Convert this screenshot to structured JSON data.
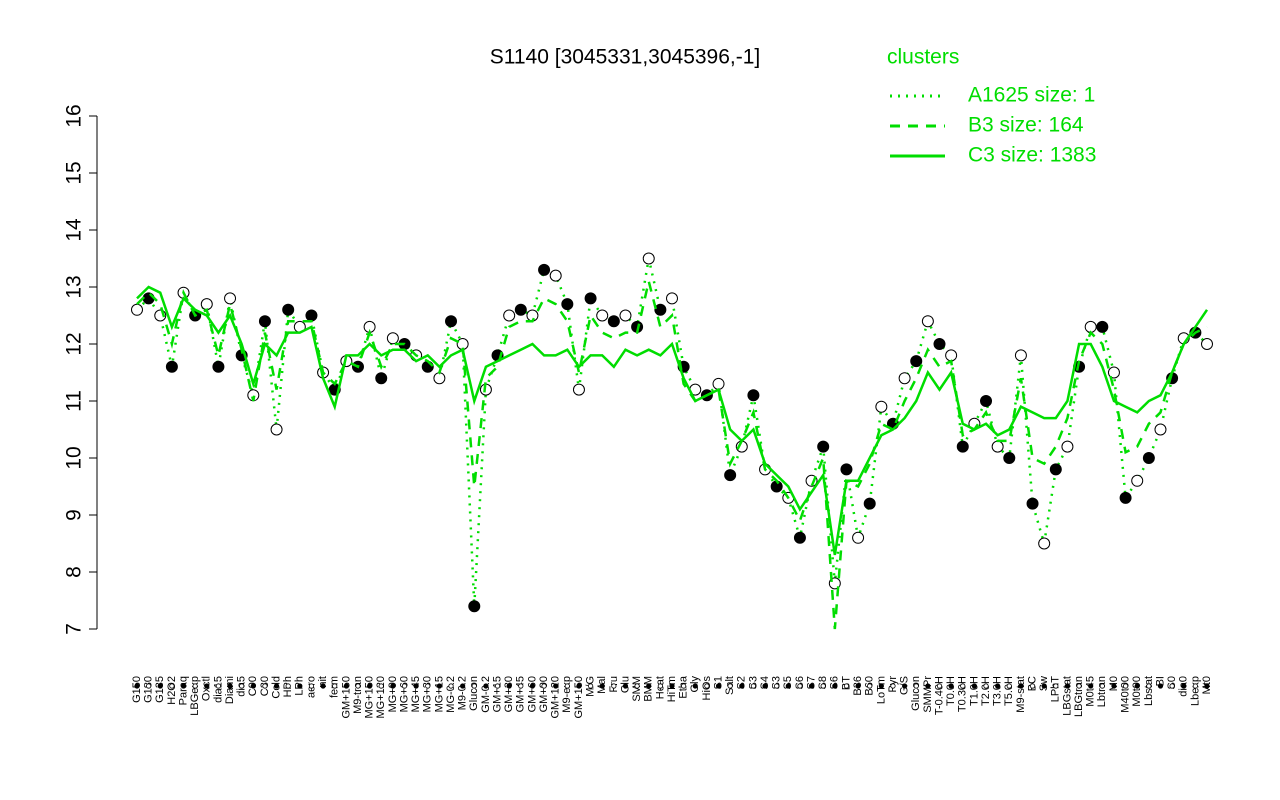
{
  "chart_data": {
    "type": "line",
    "title": "S1140 [3045331,3045396,-1]",
    "legend_title": "clusters",
    "categories": [
      "G150",
      "G180",
      "G135",
      "H2O2",
      "Paraq",
      "LBGexp",
      "Oxctl",
      "dia15",
      "Diami",
      "dia5",
      "C90",
      "C30",
      "Cold",
      "HPh",
      "LPh",
      "aero",
      "nit",
      "ferm",
      "GM+150",
      "M9-tran",
      "MG+150",
      "MG+120",
      "MG+90",
      "MG+60",
      "MG+45",
      "MG+30",
      "MG+15",
      "MG-0.2",
      "M9-0.2",
      "Glucon",
      "GM-0.2",
      "GM+15",
      "GM+30",
      "GM+45",
      "GM+60",
      "GM+90",
      "GM+120",
      "M9-exp",
      "GM+150",
      "M/G",
      "Mal",
      "Fru",
      "Glu",
      "SMM",
      "BMM",
      "Heat",
      "HiTm",
      "Etha",
      "Gly",
      "HiOs",
      "S1",
      "Salt",
      "S2",
      "S3",
      "S4",
      "S3",
      "S5",
      "S6",
      "S7",
      "S8",
      "S6",
      "BT",
      "B36",
      "B60",
      "LoTm",
      "Pyr",
      "G/S",
      "Glucon",
      "SMMPr",
      "T-0.40H",
      "T0.0H",
      "T0.30H",
      "T1.0H",
      "T2.0H",
      "T3.0H",
      "T5.0H",
      "M9-stat",
      "BC",
      "Sw",
      "LPhT",
      "LBGstat",
      "LBGtran",
      "M0t45",
      "Lbtran",
      "M0",
      "M40t90",
      "M0t90",
      "Lbstat",
      "BI",
      "S0",
      "dia0",
      "Lbexp",
      "Mt0"
    ],
    "series": [
      {
        "name": "A1625 size: 1",
        "color": "#00dd00",
        "dash": "dotted",
        "markers": true,
        "values": [
          12.6,
          12.8,
          12.5,
          11.6,
          12.9,
          12.5,
          12.7,
          11.6,
          12.8,
          11.8,
          11.1,
          12.4,
          10.5,
          12.6,
          12.3,
          12.5,
          11.5,
          11.2,
          11.7,
          11.6,
          12.3,
          11.4,
          12.1,
          12.0,
          11.8,
          11.6,
          11.4,
          12.4,
          12.0,
          7.4,
          11.2,
          11.8,
          12.5,
          12.6,
          12.5,
          13.3,
          13.2,
          12.7,
          11.2,
          12.8,
          12.5,
          12.4,
          12.5,
          12.3,
          13.5,
          12.6,
          12.8,
          11.6,
          11.2,
          11.1,
          11.3,
          9.7,
          10.2,
          11.1,
          9.8,
          9.5,
          9.3,
          8.6,
          9.6,
          10.2,
          7.8,
          9.8,
          8.6,
          9.2,
          10.9,
          10.6,
          11.4,
          11.7,
          12.4,
          12.0,
          11.8,
          10.2,
          10.6,
          11.0,
          10.2,
          10.0,
          11.8,
          9.2,
          8.5,
          9.8,
          10.2,
          11.6,
          12.3,
          12.3,
          11.5,
          9.3,
          9.6,
          10.0,
          10.5,
          11.4,
          12.1,
          12.2,
          12.0
        ]
      },
      {
        "name": "B3 size: 164",
        "color": "#00dd00",
        "dash": "dashed",
        "markers": false,
        "values": [
          12.7,
          12.9,
          12.7,
          12.0,
          12.9,
          12.5,
          12.6,
          11.8,
          12.7,
          11.9,
          11.0,
          12.2,
          11.2,
          12.4,
          12.4,
          12.4,
          11.5,
          11.3,
          11.7,
          11.6,
          12.2,
          11.6,
          12.0,
          12.0,
          11.8,
          11.7,
          11.5,
          12.1,
          12.0,
          9.5,
          11.4,
          11.6,
          12.3,
          12.4,
          12.4,
          12.8,
          12.7,
          12.4,
          11.5,
          12.5,
          12.2,
          12.1,
          12.2,
          12.2,
          13.1,
          12.3,
          12.5,
          11.3,
          11.0,
          11.1,
          11.2,
          9.9,
          10.3,
          10.8,
          9.8,
          9.6,
          9.3,
          8.9,
          9.5,
          10.0,
          7.0,
          9.6,
          9.5,
          9.9,
          10.6,
          10.5,
          11.0,
          11.4,
          11.9,
          11.6,
          11.7,
          10.4,
          10.5,
          10.8,
          10.3,
          10.3,
          11.4,
          10.0,
          9.9,
          10.2,
          10.7,
          11.7,
          12.2,
          12.0,
          11.2,
          10.1,
          10.2,
          10.6,
          10.8,
          11.5,
          12.0,
          12.2,
          12.3
        ]
      },
      {
        "name": "C3 size: 1383",
        "color": "#00dd00",
        "dash": "solid",
        "markers": false,
        "values": [
          12.8,
          13.0,
          12.9,
          12.3,
          12.8,
          12.6,
          12.5,
          12.2,
          12.5,
          12.0,
          11.3,
          12.0,
          11.8,
          12.2,
          12.2,
          12.3,
          11.4,
          10.9,
          11.8,
          11.8,
          12.0,
          11.8,
          11.9,
          11.9,
          11.7,
          11.8,
          11.6,
          11.8,
          11.9,
          11.0,
          11.6,
          11.7,
          11.8,
          11.9,
          12.0,
          11.8,
          11.8,
          11.9,
          11.6,
          11.8,
          11.8,
          11.6,
          11.9,
          11.8,
          11.9,
          11.8,
          12.0,
          11.4,
          11.0,
          11.1,
          11.2,
          10.5,
          10.3,
          10.5,
          9.9,
          9.7,
          9.5,
          9.1,
          9.4,
          9.7,
          8.3,
          9.6,
          9.6,
          10.0,
          10.4,
          10.5,
          10.7,
          11.0,
          11.5,
          11.2,
          11.5,
          10.6,
          10.5,
          10.6,
          10.4,
          10.5,
          10.9,
          10.8,
          10.7,
          10.7,
          11.0,
          12.0,
          12.0,
          11.6,
          11.0,
          10.9,
          10.8,
          11.0,
          11.1,
          11.5,
          12.0,
          12.3,
          12.6
        ]
      }
    ],
    "ylim": [
      7,
      16
    ],
    "yticks": [
      7,
      8,
      9,
      10,
      11,
      12,
      13,
      14,
      15,
      16
    ]
  }
}
